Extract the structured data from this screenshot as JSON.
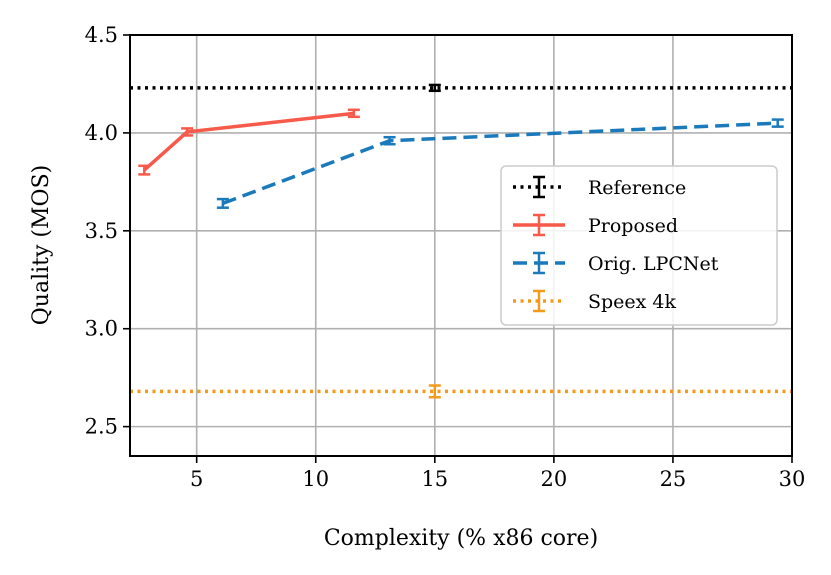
{
  "chart_data": {
    "type": "line",
    "xlabel": "Complexity (% x86 core)",
    "ylabel": "Quality (MOS)",
    "xlim": [
      2.2,
      30
    ],
    "ylim": [
      2.35,
      4.5
    ],
    "xticks": [
      5,
      10,
      15,
      20,
      25,
      30
    ],
    "yticks": [
      2.5,
      3.0,
      3.5,
      4.0,
      4.5
    ],
    "xtick_labels": [
      "5",
      "10",
      "15",
      "20",
      "25",
      "30"
    ],
    "ytick_labels": [
      "2.5",
      "3.0",
      "3.5",
      "4.0",
      "4.5"
    ],
    "grid": true,
    "legend_position": "center-right",
    "series": [
      {
        "name": "Reference",
        "kind": "hline",
        "color": "#000000",
        "style": "dotted",
        "y": 4.23,
        "errorbar_x": 15,
        "error": 0.015
      },
      {
        "name": "Proposed",
        "kind": "line",
        "color": "#f7594a",
        "style": "solid",
        "x": [
          2.8,
          4.6,
          11.6
        ],
        "y": [
          3.81,
          4.005,
          4.1
        ],
        "error": [
          0.022,
          0.018,
          0.018
        ]
      },
      {
        "name": "Orig. LPCNet",
        "kind": "line",
        "color": "#1a7abb",
        "style": "dashed",
        "x": [
          6.1,
          13.1,
          29.4
        ],
        "y": [
          3.64,
          3.96,
          4.05
        ],
        "error": [
          0.022,
          0.018,
          0.018
        ]
      },
      {
        "name": "Speex 4k",
        "kind": "hline",
        "color": "#f59b1c",
        "style": "dotted",
        "y": 2.68,
        "errorbar_x": 15,
        "error": 0.03
      }
    ]
  }
}
